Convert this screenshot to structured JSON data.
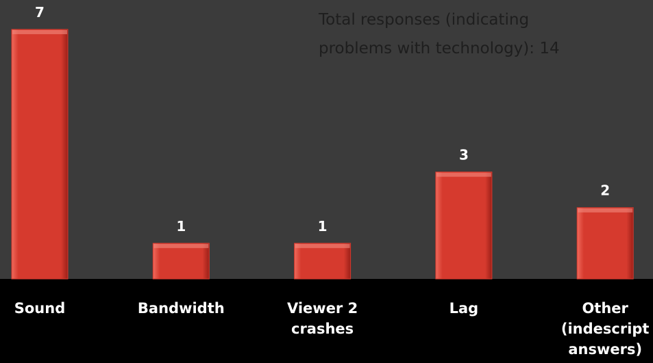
{
  "chart_data": {
    "type": "bar",
    "annotation": [
      "Total responses (indicating",
      "problems with technology): 14"
    ],
    "categories": [
      "Sound",
      "Bandwidth",
      "Viewer 2 crashes",
      "Lag",
      "Other (indescript answers)"
    ],
    "values": [
      7,
      1,
      1,
      3,
      2
    ],
    "color": "#d63a2e"
  }
}
